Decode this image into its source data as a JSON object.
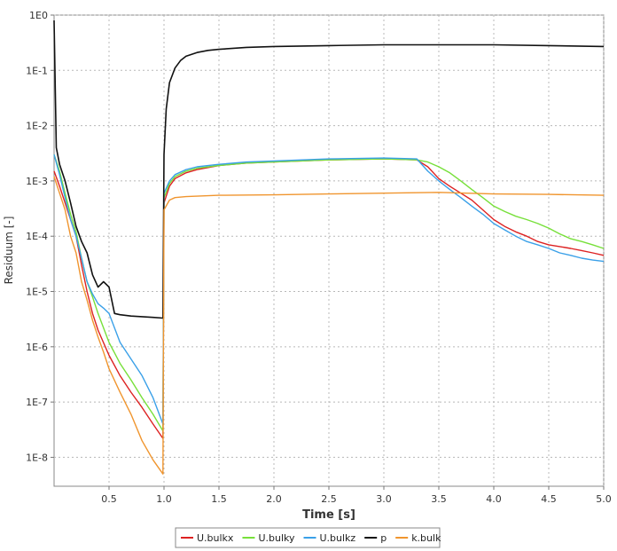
{
  "chart_data": {
    "type": "line",
    "xlabel": "Time [s]",
    "ylabel": "Residuum [-]",
    "xlim": [
      0.0,
      5.0
    ],
    "x_ticks": [
      0.5,
      1.0,
      1.5,
      2.0,
      2.5,
      3.0,
      3.5,
      4.0,
      4.5,
      5.0
    ],
    "x_tick_labels": [
      "0.5",
      "1.0",
      "1.5",
      "2.0",
      "2.5",
      "3.0",
      "3.5",
      "4.0",
      "4.5",
      "5.0"
    ],
    "yscale": "log",
    "ylim": [
      3e-09,
      1.0
    ],
    "y_ticks": [
      1e-08,
      1e-07,
      1e-06,
      1e-05,
      0.0001,
      0.001,
      0.01,
      0.1,
      1
    ],
    "y_tick_labels": [
      "1E-8",
      "1E-7",
      "1E-6",
      "1E-5",
      "1E-4",
      "1E-3",
      "1E-2",
      "1E-1",
      "1E0"
    ],
    "grid": true,
    "legend_position": "bottom-center",
    "series": [
      {
        "name": "U.bulkx",
        "color": "#dd2222",
        "points": [
          [
            0.0,
            0.0015
          ],
          [
            0.05,
            0.0008
          ],
          [
            0.1,
            0.0004
          ],
          [
            0.15,
            0.0002
          ],
          [
            0.2,
            0.0001
          ],
          [
            0.25,
            3e-05
          ],
          [
            0.3,
            1e-05
          ],
          [
            0.35,
            4e-06
          ],
          [
            0.4,
            2e-06
          ],
          [
            0.5,
            7e-07
          ],
          [
            0.6,
            3e-07
          ],
          [
            0.7,
            1.5e-07
          ],
          [
            0.8,
            8e-08
          ],
          [
            0.9,
            4e-08
          ],
          [
            0.99,
            2.2e-08
          ],
          [
            1.0,
            0.0004
          ],
          [
            1.05,
            0.0008
          ],
          [
            1.1,
            0.0011
          ],
          [
            1.2,
            0.0014
          ],
          [
            1.3,
            0.0016
          ],
          [
            1.5,
            0.0019
          ],
          [
            1.75,
            0.0021
          ],
          [
            2.0,
            0.0022
          ],
          [
            2.5,
            0.0024
          ],
          [
            3.0,
            0.0025
          ],
          [
            3.3,
            0.0024
          ],
          [
            3.4,
            0.0018
          ],
          [
            3.5,
            0.0011
          ],
          [
            3.6,
            0.0008
          ],
          [
            3.7,
            0.0006
          ],
          [
            3.8,
            0.00045
          ],
          [
            3.9,
            0.0003
          ],
          [
            4.0,
            0.0002
          ],
          [
            4.1,
            0.00015
          ],
          [
            4.2,
            0.00012
          ],
          [
            4.3,
            0.0001
          ],
          [
            4.4,
            8e-05
          ],
          [
            4.5,
            7e-05
          ],
          [
            4.6,
            6.5e-05
          ],
          [
            4.7,
            6e-05
          ],
          [
            4.8,
            5.5e-05
          ],
          [
            4.9,
            5e-05
          ],
          [
            5.0,
            4.5e-05
          ]
        ]
      },
      {
        "name": "U.bulky",
        "color": "#77e03a",
        "points": [
          [
            0.0,
            0.003
          ],
          [
            0.05,
            0.0015
          ],
          [
            0.1,
            0.0006
          ],
          [
            0.15,
            0.00025
          ],
          [
            0.2,
            0.00012
          ],
          [
            0.25,
            4e-05
          ],
          [
            0.3,
            1.5e-05
          ],
          [
            0.35,
            8e-06
          ],
          [
            0.4,
            4e-06
          ],
          [
            0.5,
            1.2e-06
          ],
          [
            0.6,
            5e-07
          ],
          [
            0.7,
            2.5e-07
          ],
          [
            0.8,
            1.2e-07
          ],
          [
            0.9,
            6e-08
          ],
          [
            0.99,
            3e-08
          ],
          [
            1.0,
            0.0005
          ],
          [
            1.05,
            0.0009
          ],
          [
            1.1,
            0.0012
          ],
          [
            1.2,
            0.0015
          ],
          [
            1.3,
            0.0017
          ],
          [
            1.5,
            0.0019
          ],
          [
            1.75,
            0.0021
          ],
          [
            2.0,
            0.0022
          ],
          [
            2.5,
            0.0024
          ],
          [
            3.0,
            0.0025
          ],
          [
            3.3,
            0.0024
          ],
          [
            3.4,
            0.0022
          ],
          [
            3.5,
            0.0018
          ],
          [
            3.6,
            0.0014
          ],
          [
            3.7,
            0.001
          ],
          [
            3.8,
            0.0007
          ],
          [
            3.9,
            0.0005
          ],
          [
            4.0,
            0.00035
          ],
          [
            4.1,
            0.00028
          ],
          [
            4.2,
            0.00023
          ],
          [
            4.3,
            0.0002
          ],
          [
            4.4,
            0.00017
          ],
          [
            4.5,
            0.00014
          ],
          [
            4.6,
            0.00011
          ],
          [
            4.7,
            9e-05
          ],
          [
            4.8,
            8e-05
          ],
          [
            4.9,
            7e-05
          ],
          [
            5.0,
            6e-05
          ]
        ]
      },
      {
        "name": "U.bulkz",
        "color": "#3aa0e8",
        "points": [
          [
            0.0,
            0.003
          ],
          [
            0.05,
            0.0013
          ],
          [
            0.1,
            0.0005
          ],
          [
            0.15,
            0.0002
          ],
          [
            0.2,
            0.0001
          ],
          [
            0.25,
            4e-05
          ],
          [
            0.3,
            1.5e-05
          ],
          [
            0.35,
            9e-06
          ],
          [
            0.4,
            6e-06
          ],
          [
            0.45,
            5e-06
          ],
          [
            0.5,
            4e-06
          ],
          [
            0.6,
            1.2e-06
          ],
          [
            0.7,
            6e-07
          ],
          [
            0.8,
            3e-07
          ],
          [
            0.9,
            1.2e-07
          ],
          [
            0.99,
            4e-08
          ],
          [
            1.0,
            0.0006
          ],
          [
            1.05,
            0.001
          ],
          [
            1.1,
            0.0013
          ],
          [
            1.2,
            0.0016
          ],
          [
            1.3,
            0.0018
          ],
          [
            1.5,
            0.002
          ],
          [
            1.75,
            0.0022
          ],
          [
            2.0,
            0.0023
          ],
          [
            2.5,
            0.0025
          ],
          [
            3.0,
            0.0026
          ],
          [
            3.3,
            0.0025
          ],
          [
            3.4,
            0.0015
          ],
          [
            3.5,
            0.001
          ],
          [
            3.6,
            0.0007
          ],
          [
            3.7,
            0.0005
          ],
          [
            3.8,
            0.00035
          ],
          [
            3.9,
            0.00025
          ],
          [
            4.0,
            0.00017
          ],
          [
            4.1,
            0.00013
          ],
          [
            4.2,
            0.0001
          ],
          [
            4.3,
            8e-05
          ],
          [
            4.4,
            7e-05
          ],
          [
            4.5,
            6e-05
          ],
          [
            4.6,
            5e-05
          ],
          [
            4.7,
            4.5e-05
          ],
          [
            4.8,
            4e-05
          ],
          [
            4.9,
            3.7e-05
          ],
          [
            5.0,
            3.5e-05
          ]
        ]
      },
      {
        "name": "p",
        "color": "#111111",
        "points": [
          [
            0.0,
            0.8
          ],
          [
            0.02,
            0.004
          ],
          [
            0.05,
            0.002
          ],
          [
            0.1,
            0.001
          ],
          [
            0.15,
            0.0004
          ],
          [
            0.2,
            0.00015
          ],
          [
            0.25,
            8e-05
          ],
          [
            0.3,
            5e-05
          ],
          [
            0.35,
            2e-05
          ],
          [
            0.4,
            1.2e-05
          ],
          [
            0.45,
            1.5e-05
          ],
          [
            0.5,
            1.2e-05
          ],
          [
            0.55,
            4e-06
          ],
          [
            0.6,
            3.8e-06
          ],
          [
            0.7,
            3.6e-06
          ],
          [
            0.8,
            3.5e-06
          ],
          [
            0.9,
            3.4e-06
          ],
          [
            0.99,
            3.3e-06
          ],
          [
            1.0,
            0.003
          ],
          [
            1.02,
            0.02
          ],
          [
            1.05,
            0.06
          ],
          [
            1.1,
            0.11
          ],
          [
            1.15,
            0.15
          ],
          [
            1.2,
            0.18
          ],
          [
            1.3,
            0.21
          ],
          [
            1.4,
            0.23
          ],
          [
            1.5,
            0.24
          ],
          [
            1.75,
            0.26
          ],
          [
            2.0,
            0.27
          ],
          [
            2.5,
            0.28
          ],
          [
            3.0,
            0.29
          ],
          [
            3.5,
            0.29
          ],
          [
            4.0,
            0.29
          ],
          [
            4.5,
            0.28
          ],
          [
            5.0,
            0.27
          ]
        ]
      },
      {
        "name": "k.bulk",
        "color": "#f0952e",
        "points": [
          [
            0.0,
            0.0012
          ],
          [
            0.05,
            0.0006
          ],
          [
            0.1,
            0.0003
          ],
          [
            0.15,
            0.0001
          ],
          [
            0.2,
            5e-05
          ],
          [
            0.25,
            1.5e-05
          ],
          [
            0.3,
            7e-06
          ],
          [
            0.35,
            3e-06
          ],
          [
            0.4,
            1.5e-06
          ],
          [
            0.45,
            8e-07
          ],
          [
            0.5,
            4e-07
          ],
          [
            0.6,
            1.5e-07
          ],
          [
            0.7,
            6e-08
          ],
          [
            0.8,
            2e-08
          ],
          [
            0.9,
            9e-09
          ],
          [
            0.99,
            5e-09
          ],
          [
            1.0,
            0.0003
          ],
          [
            1.05,
            0.00045
          ],
          [
            1.1,
            0.0005
          ],
          [
            1.2,
            0.00052
          ],
          [
            1.5,
            0.00055
          ],
          [
            2.0,
            0.00056
          ],
          [
            2.5,
            0.00058
          ],
          [
            3.0,
            0.0006
          ],
          [
            3.5,
            0.00062
          ],
          [
            4.0,
            0.00058
          ],
          [
            4.5,
            0.00057
          ],
          [
            5.0,
            0.00055
          ]
        ]
      }
    ]
  }
}
